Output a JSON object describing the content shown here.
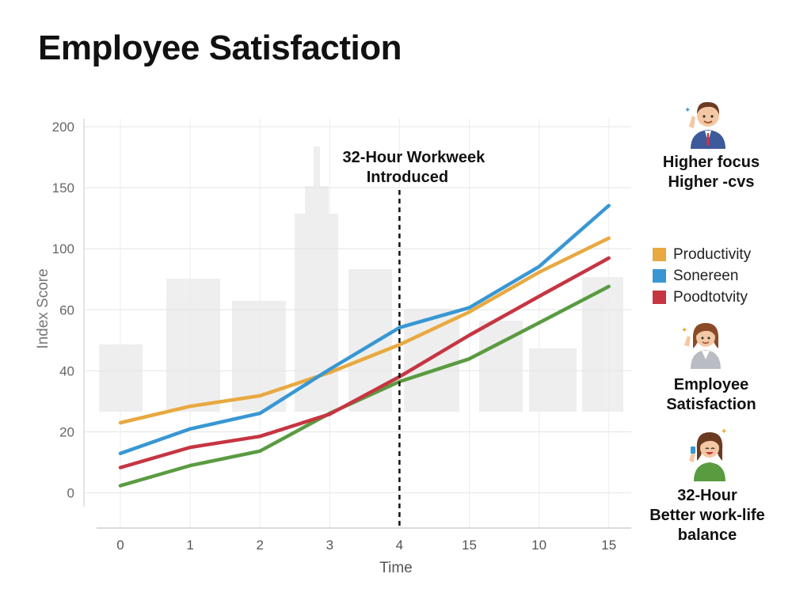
{
  "title": "Employee Satisfaction",
  "chart_data": {
    "type": "line",
    "ylabel": "Index Score",
    "xlabel": "Time",
    "y_ticks": [
      "0",
      "20",
      "40",
      "60",
      "100",
      "150",
      "200"
    ],
    "x_ticks": [
      "0",
      "1",
      "2",
      "3",
      "4",
      "15",
      "10",
      "15"
    ],
    "grid": true,
    "annotation": {
      "text_line1": "32-Hour Workweek",
      "text_line2": "Introduced",
      "at_x_index": 4
    },
    "series": [
      {
        "name": "",
        "color": "#e8a940",
        "values": [
          5.3,
          5.88,
          6.25,
          7.07,
          8.05,
          9.2,
          10.6,
          11.8
        ]
      },
      {
        "name": "",
        "color": "#3897d3",
        "values": [
          4.22,
          5.08,
          5.63,
          7.18,
          8.65,
          9.35,
          10.8,
          12.95
        ]
      },
      {
        "name": "",
        "color": "#c63542",
        "values": [
          3.72,
          4.43,
          4.82,
          5.6,
          6.92,
          8.38,
          9.75,
          11.1
        ]
      },
      {
        "name": "",
        "color": "#5a9b40",
        "values": [
          3.08,
          3.79,
          4.3,
          5.63,
          6.75,
          7.55,
          8.82,
          10.1
        ]
      }
    ]
  },
  "legend": [
    {
      "label": "Productivity",
      "color": "#e8a940"
    },
    {
      "label": "Sonereen",
      "color": "#3897d3"
    },
    {
      "label": "Poodtotvity",
      "color": "#c63542"
    }
  ],
  "side_notes": {
    "top_line1": "Higher focus",
    "top_line2": "Higher -cvs",
    "mid_line1": "Employee",
    "mid_line2": "Satisfaction",
    "bottom_line1": "32-Hour",
    "bottom_line2": "Better work-life",
    "bottom_line3": "balance"
  },
  "icons": [
    "businessman-icon",
    "woman-employee-icon",
    "relaxed-woman-icon"
  ]
}
